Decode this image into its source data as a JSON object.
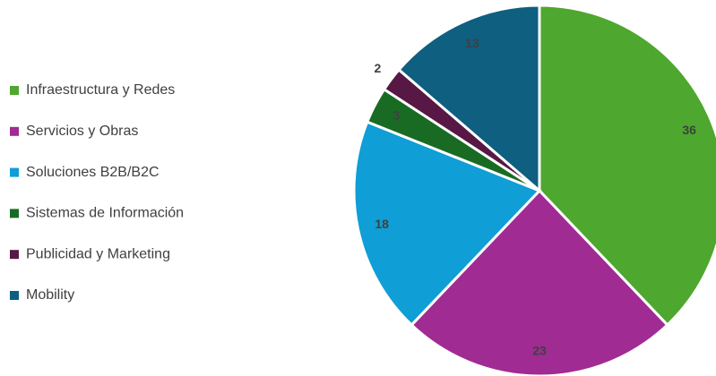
{
  "chart_data": {
    "type": "pie",
    "categories": [
      "Infraestructura y Redes",
      "Servicios y Obras",
      "Soluciones B2B/B2C",
      "Sistemas de Información",
      "Publicidad y Marketing",
      "Mobility"
    ],
    "values": [
      36,
      23,
      18,
      3,
      2,
      13
    ],
    "colors": [
      "#4ea72e",
      "#a02b93",
      "#0f9ed5",
      "#196b24",
      "#571845",
      "#0e5f80"
    ],
    "legend": "left"
  }
}
